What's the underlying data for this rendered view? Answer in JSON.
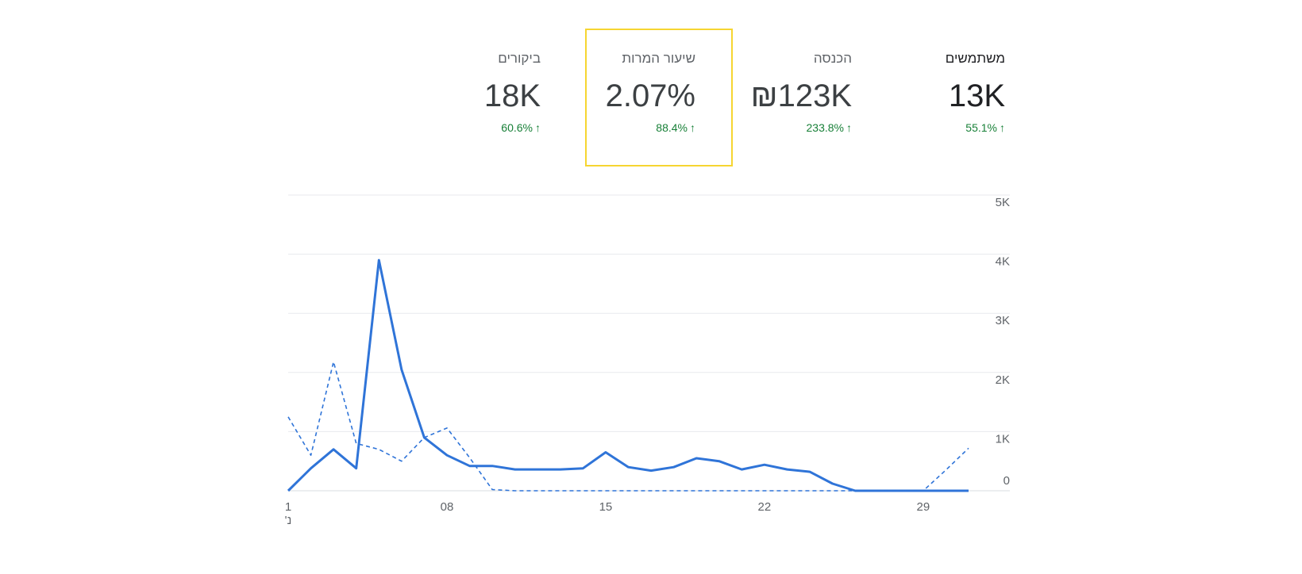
{
  "metrics": [
    {
      "title": "משתמשים",
      "value": "13K",
      "change": "55.1%",
      "arrow": "↑",
      "active": true
    },
    {
      "title": "הכנסה",
      "value": "₪123K",
      "change": "233.8%",
      "arrow": "↑",
      "active": false
    },
    {
      "title": "שיעור המרות",
      "value": "2.07%",
      "change": "88.4%",
      "arrow": "↑",
      "active": false,
      "selected": true
    },
    {
      "title": "ביקורים",
      "value": "18K",
      "change": "60.6%",
      "arrow": "↑",
      "active": false
    }
  ],
  "colors": {
    "primary_line": "#2f74d8",
    "compare_line": "#2f74d8",
    "positive_change": "#188038",
    "selection_border": "#f6d531",
    "gridline": "#e8eaed"
  },
  "chart_data": {
    "type": "line",
    "title": "",
    "xlabel": "",
    "ylabel": "",
    "x": [
      1,
      2,
      3,
      4,
      5,
      6,
      7,
      8,
      9,
      10,
      11,
      12,
      13,
      14,
      15,
      16,
      17,
      18,
      19,
      20,
      21,
      22,
      23,
      24,
      25,
      26,
      27,
      28,
      29,
      30,
      31
    ],
    "x_tick_labels": [
      {
        "x": 1,
        "label": "1",
        "sublabel": "'נ"
      },
      {
        "x": 8,
        "label": "08"
      },
      {
        "x": 15,
        "label": "15"
      },
      {
        "x": 22,
        "label": "22"
      },
      {
        "x": 29,
        "label": "29"
      }
    ],
    "y_ticks": [
      0,
      1000,
      2000,
      3000,
      4000,
      5000
    ],
    "y_tick_labels": [
      "0",
      "1K",
      "2K",
      "3K",
      "4K",
      "5K"
    ],
    "ylim": [
      0,
      5000
    ],
    "grid": true,
    "y_axis_side": "right",
    "series": [
      {
        "style": "solid",
        "values": [
          0,
          380,
          700,
          380,
          3900,
          2050,
          900,
          600,
          420,
          420,
          360,
          360,
          360,
          380,
          650,
          400,
          340,
          400,
          550,
          500,
          360,
          440,
          360,
          320,
          120,
          0,
          0,
          0,
          0,
          0,
          0
        ]
      },
      {
        "style": "dashed",
        "values": [
          1250,
          600,
          2180,
          800,
          700,
          500,
          900,
          1060,
          560,
          20,
          0,
          0,
          0,
          0,
          0,
          0,
          0,
          0,
          0,
          0,
          0,
          0,
          0,
          0,
          0,
          0,
          0,
          0,
          0,
          350,
          720
        ]
      }
    ]
  }
}
